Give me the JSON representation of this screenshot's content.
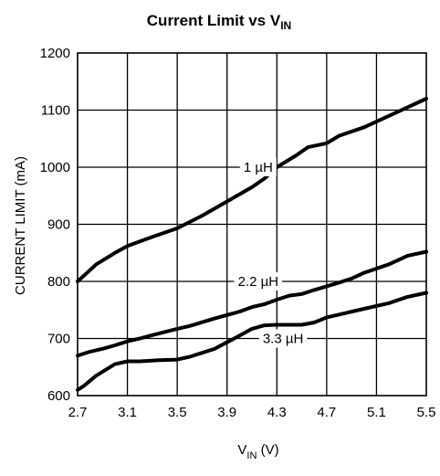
{
  "chart_data": {
    "type": "line",
    "title": {
      "main": "Current Limit vs V",
      "sub": "IN"
    },
    "xlabel": {
      "main": "V",
      "sub": "IN",
      "unit": " (V)"
    },
    "ylabel": "CURRENT LIMIT (mA)",
    "xlim": [
      2.7,
      5.5
    ],
    "ylim": [
      600,
      1200
    ],
    "x_ticks": [
      "2.7",
      "3.1",
      "3.5",
      "3.9",
      "4.3",
      "4.7",
      "5.1",
      "5.5"
    ],
    "y_ticks": [
      "600",
      "700",
      "800",
      "900",
      "1000",
      "1100",
      "1200"
    ],
    "grid": true,
    "series": [
      {
        "name": "1 µH",
        "x": [
          2.7,
          2.75,
          2.85,
          3.0,
          3.1,
          3.3,
          3.5,
          3.7,
          3.9,
          4.1,
          4.2,
          4.3,
          4.45,
          4.55,
          4.7,
          4.8,
          5.0,
          5.2,
          5.35,
          5.5
        ],
        "y": [
          800,
          810,
          830,
          850,
          862,
          878,
          893,
          915,
          940,
          965,
          980,
          1000,
          1020,
          1035,
          1042,
          1055,
          1070,
          1090,
          1105,
          1120
        ]
      },
      {
        "name": "2.2 µH",
        "x": [
          2.7,
          2.8,
          2.9,
          3.0,
          3.1,
          3.2,
          3.3,
          3.5,
          3.6,
          3.8,
          4.0,
          4.1,
          4.2,
          4.3,
          4.4,
          4.5,
          4.6,
          4.8,
          4.9,
          5.0,
          5.2,
          5.35,
          5.5
        ],
        "y": [
          670,
          677,
          682,
          688,
          695,
          700,
          706,
          717,
          722,
          735,
          747,
          755,
          760,
          768,
          775,
          778,
          785,
          798,
          805,
          815,
          830,
          845,
          852
        ]
      },
      {
        "name": "3.3 µH",
        "x": [
          2.7,
          2.75,
          2.85,
          3.0,
          3.1,
          3.2,
          3.35,
          3.5,
          3.6,
          3.8,
          4.0,
          4.1,
          4.2,
          4.3,
          4.4,
          4.5,
          4.6,
          4.7,
          4.8,
          5.0,
          5.2,
          5.35,
          5.5
        ],
        "y": [
          610,
          617,
          635,
          655,
          660,
          660,
          662,
          663,
          668,
          682,
          705,
          717,
          723,
          724,
          724,
          724,
          728,
          737,
          742,
          752,
          762,
          773,
          780
        ]
      }
    ],
    "annotations": [
      {
        "series": 0,
        "text": "1 µH",
        "at_x": 4.15,
        "at_y": 1000
      },
      {
        "series": 1,
        "text": "2.2 µH",
        "at_x": 4.15,
        "at_y": 800
      },
      {
        "series": 2,
        "text": "3.3 µH",
        "at_x": 4.35,
        "at_y": 700
      }
    ]
  }
}
